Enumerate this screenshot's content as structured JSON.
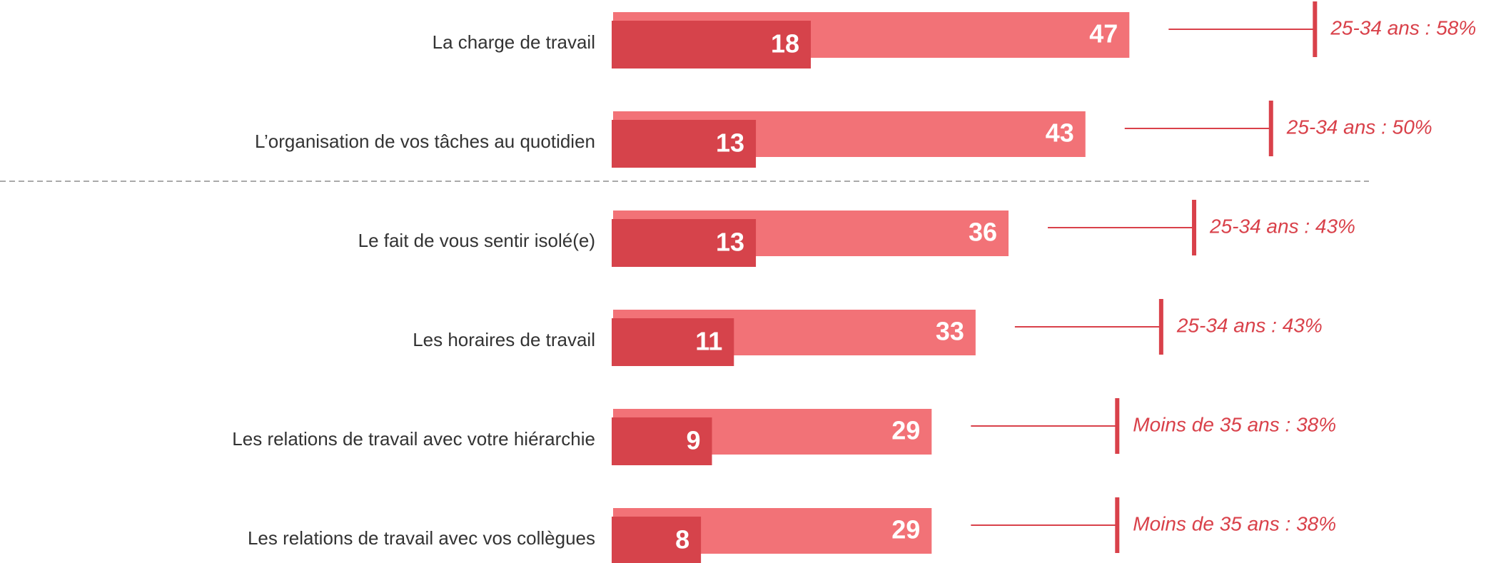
{
  "chart_data": {
    "type": "bar",
    "orientation": "horizontal",
    "categories": [
      "La charge de travail",
      "L’organisation de vos tâches au quotidien",
      "Le fait de vous sentir isolé(e)",
      "Les horaires de travail",
      "Les relations de travail avec votre hiérarchie",
      "Les relations de travail avec vos collègues"
    ],
    "series": [
      {
        "color": "#f27277",
        "values": [
          47,
          43,
          36,
          33,
          29,
          29
        ]
      },
      {
        "color": "#d6434b",
        "values": [
          18,
          13,
          13,
          11,
          9,
          8
        ]
      }
    ],
    "annotations": [
      "25-34 ans : 58%",
      "25-34 ans : 50%",
      "25-34 ans : 43%",
      "25-34 ans : 43%",
      "Moins de 35 ans : 38%",
      "Moins de 35 ans : 38%"
    ],
    "annotation_color": "#d9414a"
  }
}
